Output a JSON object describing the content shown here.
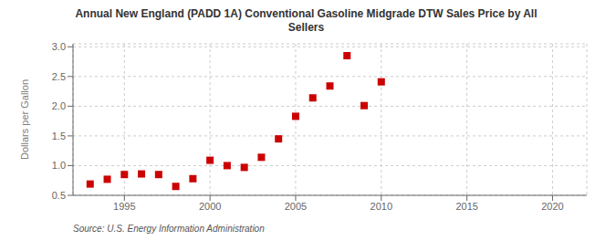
{
  "chart_data": {
    "type": "scatter",
    "title": "Annual New England (PADD 1A) Conventional Gasoline Midgrade DTW Sales Price by All\nSellers",
    "ylabel": "Dollars per Gallon",
    "annotations": [
      "Source: U.S. Energy Information Administration"
    ],
    "x": [
      1993,
      1994,
      1995,
      1996,
      1997,
      1998,
      1999,
      2000,
      2001,
      2002,
      2003,
      2004,
      2005,
      2006,
      2007,
      2008,
      2009,
      2010
    ],
    "values": [
      0.69,
      0.77,
      0.85,
      0.86,
      0.85,
      0.65,
      0.78,
      1.09,
      1.0,
      0.97,
      1.14,
      1.45,
      1.83,
      2.14,
      2.34,
      2.85,
      2.01,
      2.41
    ],
    "color": "#cc0000",
    "marker": "square",
    "xlim": [
      1992,
      2022
    ],
    "ylim": [
      0.5,
      3.05
    ],
    "xticks": [
      1995,
      2000,
      2005,
      2010,
      2015,
      2020
    ],
    "yticks": [
      0.5,
      {
        "value": 1.0,
        "label": "1.0"
      },
      1.5,
      {
        "value": 2.0,
        "label": "2.0"
      },
      2.5,
      {
        "value": 3.0,
        "label": "3.0"
      }
    ],
    "grid": true
  }
}
